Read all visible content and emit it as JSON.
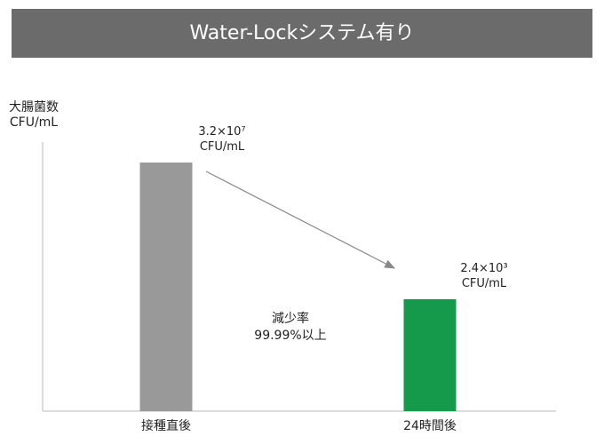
{
  "chart_data": {
    "type": "bar",
    "title": "Water-Lockシステム有り",
    "y_label": "大腸菌数\nCFU/mL",
    "categories": [
      "接種直後",
      "24時間後"
    ],
    "values": [
      32000000,
      2400
    ],
    "value_labels": [
      "3.2×10⁷\nCFU/mL",
      "2.4×10³\nCFU/mL"
    ],
    "colors": [
      "#999999",
      "#15994a"
    ],
    "log_scale": true,
    "annotation": "減少率\n99.99%以上"
  }
}
